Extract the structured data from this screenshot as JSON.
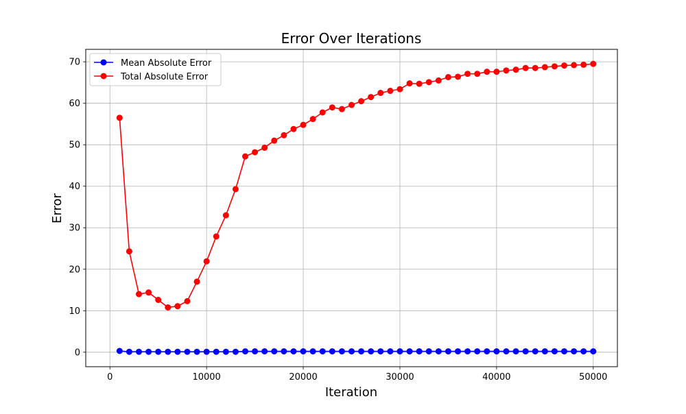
{
  "chart_data": {
    "type": "line",
    "title": "Error Over Iterations",
    "xlabel": "Iteration",
    "ylabel": "Error",
    "xlim": [
      -2500,
      52500
    ],
    "ylim": [
      -3.5,
      73
    ],
    "xticks": [
      0,
      10000,
      20000,
      30000,
      40000,
      50000
    ],
    "xtick_labels": [
      "0",
      "10000",
      "20000",
      "30000",
      "40000",
      "50000"
    ],
    "yticks": [
      0,
      10,
      20,
      30,
      40,
      50,
      60,
      70
    ],
    "ytick_labels": [
      "0",
      "10",
      "20",
      "30",
      "40",
      "50",
      "60",
      "70"
    ],
    "grid": true,
    "legend_position": "top-left",
    "x": [
      1000,
      2000,
      3000,
      4000,
      5000,
      6000,
      7000,
      8000,
      9000,
      10000,
      11000,
      12000,
      13000,
      14000,
      15000,
      16000,
      17000,
      18000,
      19000,
      20000,
      21000,
      22000,
      23000,
      24000,
      25000,
      26000,
      27000,
      28000,
      29000,
      30000,
      31000,
      32000,
      33000,
      34000,
      35000,
      36000,
      37000,
      38000,
      39000,
      40000,
      41000,
      42000,
      43000,
      44000,
      45000,
      46000,
      47000,
      48000,
      49000,
      50000
    ],
    "series": [
      {
        "name": "Mean Absolute Error",
        "color": "#0000ff",
        "values": [
          0.3,
          0.1,
          0.1,
          0.1,
          0.1,
          0.1,
          0.1,
          0.1,
          0.1,
          0.1,
          0.1,
          0.1,
          0.1,
          0.2,
          0.2,
          0.2,
          0.2,
          0.2,
          0.2,
          0.2,
          0.2,
          0.2,
          0.2,
          0.2,
          0.2,
          0.2,
          0.2,
          0.2,
          0.2,
          0.2,
          0.2,
          0.2,
          0.2,
          0.2,
          0.2,
          0.2,
          0.2,
          0.2,
          0.2,
          0.2,
          0.2,
          0.2,
          0.2,
          0.2,
          0.2,
          0.2,
          0.2,
          0.2,
          0.2,
          0.2
        ]
      },
      {
        "name": "Total Absolute Error",
        "color": "#ff0000",
        "values": [
          56.5,
          24.3,
          14.0,
          14.4,
          12.6,
          10.8,
          11.1,
          12.3,
          17.0,
          21.9,
          27.9,
          33.0,
          39.3,
          47.2,
          48.2,
          49.3,
          51.0,
          52.3,
          53.8,
          54.8,
          56.2,
          57.8,
          59.0,
          58.6,
          59.6,
          60.5,
          61.5,
          62.5,
          63.0,
          63.4,
          64.8,
          64.7,
          65.1,
          65.5,
          66.3,
          66.4,
          67.1,
          67.1,
          67.6,
          67.6,
          67.9,
          68.1,
          68.5,
          68.5,
          68.7,
          68.9,
          69.1,
          69.2,
          69.3,
          69.5
        ]
      }
    ]
  }
}
